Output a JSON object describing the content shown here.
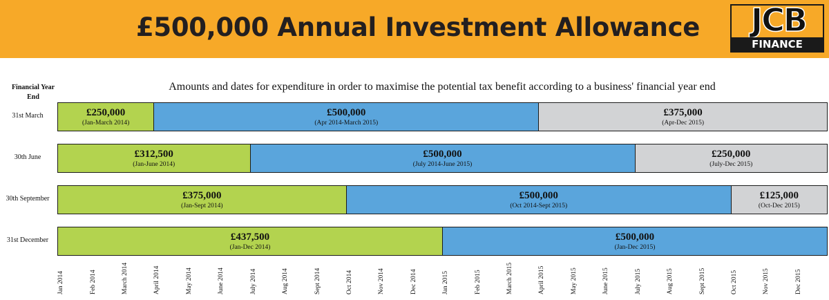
{
  "header": {
    "title": "£500,000 Annual Investment Allowance",
    "logo_text": "JCB",
    "logo_sub": "FINANCE",
    "background": "#f7a928"
  },
  "chart_data": {
    "type": "bar",
    "orientation": "horizontal-stacked",
    "title": "Amounts and dates for expenditure in order to maximise the potential tax benefit according to a business' financial year end",
    "row_header": "Financial Year End",
    "colors": {
      "green": "#b3d34f",
      "blue": "#5aa5dc",
      "grey": "#d2d3d5"
    },
    "x_ticks": [
      "Jan 2014",
      "Feb 2014",
      "March 2014",
      "April 2014",
      "May 2014",
      "June 2014",
      "July 2014",
      "Aug 2014",
      "Sept 2014",
      "Oct 2014",
      "Nov 2014",
      "Dec 2014",
      "Jan 2015",
      "Feb 2015",
      "March 2015",
      "April 2015",
      "May 2015",
      "June 2015",
      "July 2015",
      "Aug 2015",
      "Sept 2015",
      "Oct 2015",
      "Nov 2015",
      "Dec 2015"
    ],
    "rows": [
      {
        "label": "31st March",
        "segments": [
          {
            "amount": "£250,000",
            "range": "(Jan-March 2014)",
            "start": "Jan 2014",
            "end": "March 2014",
            "months": 3,
            "color": "green"
          },
          {
            "amount": "£500,000",
            "range": "(Apr 2014-March 2015)",
            "start": "April 2014",
            "end": "March 2015",
            "months": 12,
            "color": "blue"
          },
          {
            "amount": "£375,000",
            "range": "(Apr-Dec 2015)",
            "start": "April 2015",
            "end": "Dec 2015",
            "months": 9,
            "color": "grey"
          }
        ]
      },
      {
        "label": "30th June",
        "segments": [
          {
            "amount": "£312,500",
            "range": "(Jan-June 2014)",
            "start": "Jan 2014",
            "end": "June 2014",
            "months": 6,
            "color": "green"
          },
          {
            "amount": "£500,000",
            "range": "(July 2014-June 2015)",
            "start": "July 2014",
            "end": "June 2015",
            "months": 12,
            "color": "blue"
          },
          {
            "amount": "£250,000",
            "range": "(July-Dec 2015)",
            "start": "July 2015",
            "end": "Dec 2015",
            "months": 6,
            "color": "grey"
          }
        ]
      },
      {
        "label": "30th September",
        "segments": [
          {
            "amount": "£375,000",
            "range": "(Jan-Sept 2014)",
            "start": "Jan 2014",
            "end": "Sept 2014",
            "months": 9,
            "color": "green"
          },
          {
            "amount": "£500,000",
            "range": "(Oct 2014-Sept 2015)",
            "start": "Oct 2014",
            "end": "Sept 2015",
            "months": 12,
            "color": "blue"
          },
          {
            "amount": "£125,000",
            "range": "(Oct-Dec 2015)",
            "start": "Oct 2015",
            "end": "Dec 2015",
            "months": 3,
            "color": "grey"
          }
        ]
      },
      {
        "label": "31st December",
        "segments": [
          {
            "amount": "£437,500",
            "range": "(Jan-Dec 2014)",
            "start": "Jan 2014",
            "end": "Dec 2014",
            "months": 12,
            "color": "green"
          },
          {
            "amount": "£500,000",
            "range": "(Jan-Dec 2015)",
            "start": "Jan 2015",
            "end": "Dec 2015",
            "months": 12,
            "color": "blue"
          }
        ]
      }
    ]
  }
}
